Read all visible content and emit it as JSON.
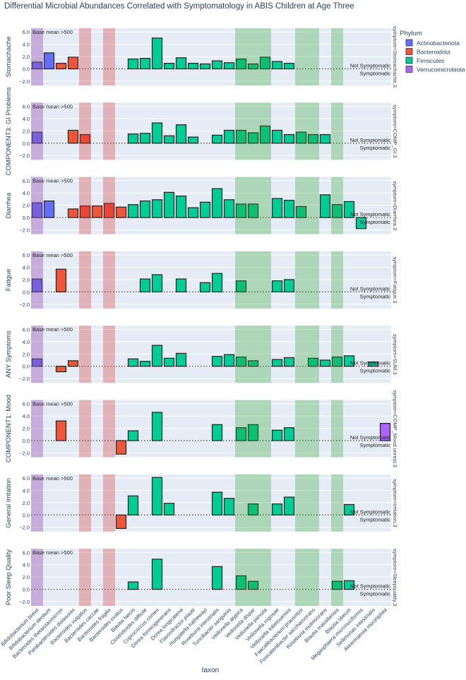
{
  "chart_data": {
    "type": "bar",
    "title": "Differential Microbial Abundances Correlated with Symptomatology in ABIS Children at Age Three",
    "xlabel": "taxon",
    "ylim": [
      -2.7,
      6.6
    ],
    "yticks": [
      "6.0",
      "4.0",
      "2.0",
      "0.0",
      "−2.0"
    ],
    "ytick_values": [
      6,
      4,
      2,
      0,
      -2
    ],
    "panel_annotation": "Base mean >500",
    "above_label": "Not Symptomatic",
    "below_label": "Symptomatic",
    "legend": {
      "title": "Phylum",
      "placement": "top-right",
      "entries": [
        {
          "name": "Actinobacteriota",
          "color": "#636EFA"
        },
        {
          "name": "Bacteroidota",
          "color": "#EF553B"
        },
        {
          "name": "Firmicutes",
          "color": "#00CC96"
        },
        {
          "name": "Verrucomicrobiota",
          "color": "#AB63FA"
        }
      ]
    },
    "categories": [
      "Bifidobacterium breve",
      "Bifidobacterium dentium",
      "Bacteroides thetaiotaomicron",
      "Parabacteroides distasonis",
      "Bacteroides vulgatus",
      "Bacteroides caccae",
      "Bacteroides fragilis",
      "Bacteroides ovatus",
      "Blautia faecis",
      "Clostridioides difficile",
      "Coprococcus comes",
      "Dorea formicigenerans",
      "Dorea longicatena",
      "Flavonifractor plautii",
      "Hungatella hathewayi",
      "Roseburia intestinalis",
      "Turicibacter sanguinis",
      "Veillonella atypica",
      "Veillonella dispar",
      "Veillonella parvula",
      "Veillonella rogosae",
      "Veillonella tobetsuensis",
      "Faecalibacterium prausnitzii",
      "Fusicatenibacter saccharivorans",
      "Roseburia inulinivorans",
      "Blautia massiliensis",
      "Blautia obeum",
      "Megasphaera micronuciformis",
      "Sellimonas intestinalis",
      "Akkermansia muciniphila"
    ],
    "phylum": [
      "Actinobacteriota",
      "Actinobacteriota",
      "Bacteroidota",
      "Bacteroidota",
      "Bacteroidota",
      "Bacteroidota",
      "Bacteroidota",
      "Bacteroidota",
      "Firmicutes",
      "Firmicutes",
      "Firmicutes",
      "Firmicutes",
      "Firmicutes",
      "Firmicutes",
      "Firmicutes",
      "Firmicutes",
      "Firmicutes",
      "Firmicutes",
      "Firmicutes",
      "Firmicutes",
      "Firmicutes",
      "Firmicutes",
      "Firmicutes",
      "Firmicutes",
      "Firmicutes",
      "Firmicutes",
      "Firmicutes",
      "Firmicutes",
      "Firmicutes",
      "Verrucomicrobiota"
    ],
    "highlight_bands": [
      {
        "categories": [
          1
        ],
        "color": "purple"
      },
      {
        "categories": [
          5,
          7
        ],
        "color": "red"
      },
      {
        "categories": [
          18,
          19,
          20,
          23,
          24,
          26
        ],
        "color": "green"
      }
    ],
    "facets": [
      {
        "name": "Stomachache",
        "strip": "symptom=Stomachache.3",
        "values": [
          1.1,
          2.6,
          0.9,
          1.9,
          null,
          null,
          null,
          null,
          1.6,
          1.7,
          5.0,
          0.9,
          1.8,
          0.9,
          0.8,
          1.3,
          1.0,
          1.6,
          0.8,
          1.9,
          1.2,
          0.9,
          null,
          null,
          null,
          null,
          null,
          null,
          null,
          null
        ]
      },
      {
        "name": "COMPONENT3: GI Problems",
        "strip": "symptom=COMP_GI.3",
        "values": [
          1.8,
          null,
          null,
          2.1,
          1.4,
          null,
          null,
          null,
          1.5,
          1.6,
          3.3,
          1.2,
          3.0,
          1.0,
          null,
          1.3,
          2.1,
          2.1,
          1.7,
          2.8,
          2.1,
          1.4,
          1.8,
          1.4,
          1.4,
          null,
          null,
          null,
          null,
          null
        ]
      },
      {
        "name": "Diarrhea",
        "strip": "symptom=Diarrhea.3",
        "values": [
          2.4,
          2.7,
          null,
          1.4,
          1.9,
          1.9,
          2.3,
          1.7,
          2.1,
          2.7,
          2.9,
          4.1,
          3.5,
          1.6,
          2.5,
          4.7,
          2.9,
          2.2,
          2.2,
          null,
          3.1,
          2.8,
          1.8,
          null,
          3.7,
          2.1,
          2.6,
          -1.8,
          null,
          null
        ]
      },
      {
        "name": "Fatigue",
        "strip": "symptom=Fatigue.3",
        "values": [
          2.1,
          null,
          3.7,
          null,
          null,
          null,
          null,
          null,
          null,
          2.1,
          2.8,
          null,
          2.1,
          null,
          1.5,
          3.0,
          null,
          1.8,
          null,
          null,
          1.8,
          2.0,
          null,
          null,
          null,
          null,
          null,
          null,
          null,
          null
        ]
      },
      {
        "name": "ANY Symptoms",
        "strip": "symptom=SUM.3",
        "values": [
          1.2,
          null,
          -0.9,
          0.9,
          null,
          null,
          null,
          null,
          1.2,
          0.8,
          3.4,
          1.3,
          2.1,
          null,
          null,
          1.6,
          1.9,
          1.5,
          0.9,
          null,
          1.1,
          1.4,
          null,
          1.3,
          1.0,
          1.5,
          1.7,
          null,
          0.7,
          null
        ]
      },
      {
        "name": "COMPONENT1: Mood",
        "strip": "symptom=COMP_Mood.unrest.3",
        "values": [
          null,
          null,
          3.2,
          null,
          null,
          null,
          null,
          -2.2,
          1.6,
          null,
          4.6,
          null,
          null,
          null,
          null,
          2.6,
          null,
          2.1,
          2.6,
          null,
          1.7,
          2.1,
          null,
          null,
          null,
          null,
          null,
          null,
          null,
          2.8
        ]
      },
      {
        "name": "General Irritation",
        "strip": "symptom=Irritation.3",
        "values": [
          null,
          null,
          null,
          null,
          null,
          null,
          null,
          -2.2,
          3.1,
          null,
          6.1,
          1.9,
          null,
          null,
          null,
          3.7,
          2.7,
          null,
          1.8,
          null,
          1.8,
          2.9,
          null,
          null,
          null,
          null,
          1.7,
          null,
          null,
          null
        ]
      },
      {
        "name": "Poor Sleep Quality",
        "strip": "symptom=Sleepquality.3",
        "values": [
          null,
          null,
          null,
          null,
          null,
          null,
          null,
          null,
          1.2,
          null,
          4.9,
          null,
          null,
          null,
          null,
          3.7,
          null,
          2.2,
          1.3,
          null,
          null,
          null,
          null,
          null,
          null,
          1.3,
          1.4,
          null,
          null,
          null
        ]
      }
    ]
  }
}
